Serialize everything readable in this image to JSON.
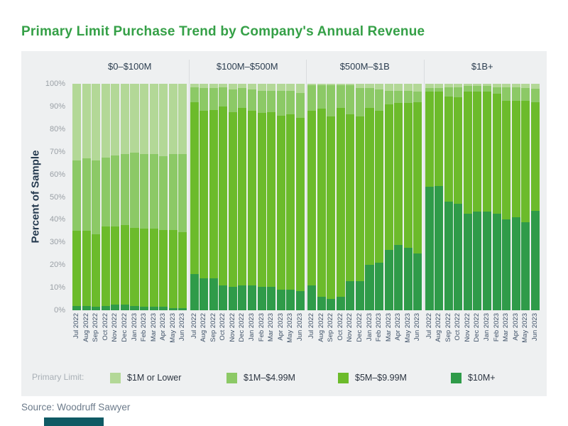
{
  "footer": {
    "source": "Source: Woodruff Sawyer"
  },
  "colors": {
    "title_green": "#35a047",
    "card_background": "#eef0f1",
    "brand_bar_teal": "#0f5a64",
    "axis_text": "#9aa0a6",
    "header_text": "#2c3e50"
  },
  "chart_data": {
    "type": "bar",
    "stacked": true,
    "orientation": "vertical",
    "title": "Primary Limit Purchase Trend by Company's Annual Revenue",
    "ylabel": "Percent of Sample",
    "ylim": [
      0,
      100
    ],
    "yticks": [
      "0%",
      "10%",
      "20%",
      "30%",
      "40%",
      "50%",
      "60%",
      "70%",
      "80%",
      "90%",
      "100%"
    ],
    "categories": [
      "Jul 2022",
      "Aug 2022",
      "Sep 2022",
      "Oct 2022",
      "Nov 2022",
      "Dec 2022",
      "Jan 2023",
      "Feb 2023",
      "Mar 2023",
      "Apr 2023",
      "May 2023",
      "Jun 2023"
    ],
    "legend_title": "Primary Limit:",
    "legend_position": "bottom",
    "grid": false,
    "series_names": [
      "$1M or Lower",
      "$1M–$4.99M",
      "$5M–$9.99M",
      "$10M+"
    ],
    "series_colors": [
      "#b3d897",
      "#8cc966",
      "#6cbb2b",
      "#2f9b49"
    ],
    "stack_order_bottom_to_top": [
      "$10M+",
      "$5M–$9.99M",
      "$1M–$4.99M",
      "$1M or Lower"
    ],
    "units": "percent of sample",
    "panels": [
      {
        "label": "$0–$100M",
        "series": [
          {
            "name": "$1M or Lower",
            "values": [
              34,
              33,
              34,
              32.5,
              31.5,
              31,
              30.5,
              31,
              31,
              32,
              31,
              31
            ]
          },
          {
            "name": "$1M–$4.99M",
            "values": [
              31,
              32,
              32.5,
              30.5,
              31.5,
              31.5,
              33,
              33,
              33,
              32.5,
              33.5,
              34.5
            ]
          },
          {
            "name": "$5M–$9.99M",
            "values": [
              33,
              33,
              32,
              35,
              34.5,
              35,
              34.5,
              34.5,
              34.5,
              34,
              34.5,
              33.5
            ]
          },
          {
            "name": "$10M+",
            "values": [
              2,
              2,
              1.5,
              2,
              2.5,
              2.5,
              2,
              1.5,
              1.5,
              1.5,
              1,
              1
            ]
          }
        ]
      },
      {
        "label": "$100M–$500M",
        "series": [
          {
            "name": "$1M or Lower",
            "values": [
              1.5,
              2,
              2,
              1.5,
              2.5,
              2,
              2.5,
              3,
              3,
              3,
              3,
              4
            ]
          },
          {
            "name": "$1M–$4.99M",
            "values": [
              6.5,
              10,
              9.5,
              8.5,
              10,
              8.5,
              9.5,
              10,
              9.5,
              11,
              10.5,
              11
            ]
          },
          {
            "name": "$5M–$9.99M",
            "values": [
              76,
              74,
              74.5,
              79,
              77,
              78.5,
              77,
              76.5,
              77,
              77,
              77.5,
              76.5
            ]
          },
          {
            "name": "$10M+",
            "values": [
              16,
              14,
              14,
              11,
              10.5,
              11,
              11,
              10.5,
              10.5,
              9,
              9,
              8.5
            ]
          }
        ]
      },
      {
        "label": "$500M–$1B",
        "series": [
          {
            "name": "$1M or Lower",
            "values": [
              0.5,
              0.5,
              0.5,
              0.5,
              0.5,
              2,
              2,
              2.5,
              3,
              3,
              3,
              3.5
            ]
          },
          {
            "name": "$1M–$4.99M",
            "values": [
              11.5,
              10.5,
              14,
              10,
              13,
              12.5,
              8.5,
              9.5,
              6,
              5.5,
              5.5,
              4.5
            ]
          },
          {
            "name": "$5M–$9.99M",
            "values": [
              77,
              83,
              80.5,
              83.5,
              73.5,
              72.5,
              69.5,
              67,
              64.5,
              62.5,
              64,
              67
            ]
          },
          {
            "name": "$10M+",
            "values": [
              11,
              6,
              5,
              6,
              13,
              13,
              20,
              21,
              26.5,
              29,
              27.5,
              25
            ]
          }
        ]
      },
      {
        "label": "$1B+",
        "series": [
          {
            "name": "$1M or Lower",
            "values": [
              2,
              1.8,
              1.5,
              1.5,
              1,
              1,
              1,
              1.5,
              1.5,
              1.5,
              2,
              2.2
            ]
          },
          {
            "name": "$1M–$4.99M",
            "values": [
              1.5,
              1.7,
              4,
              4.5,
              2.5,
              2.5,
              2.5,
              3,
              6,
              6,
              5.5,
              5.8
            ]
          },
          {
            "name": "$5M–$9.99M",
            "values": [
              42,
              41.5,
              46.5,
              47,
              54,
              53,
              53,
              53,
              52.5,
              51.5,
              53.5,
              48
            ]
          },
          {
            "name": "$10M+",
            "values": [
              54.5,
              55,
              48,
              47,
              42.5,
              43.5,
              43.5,
              42.5,
              40,
              41,
              39,
              44
            ]
          }
        ]
      }
    ]
  }
}
